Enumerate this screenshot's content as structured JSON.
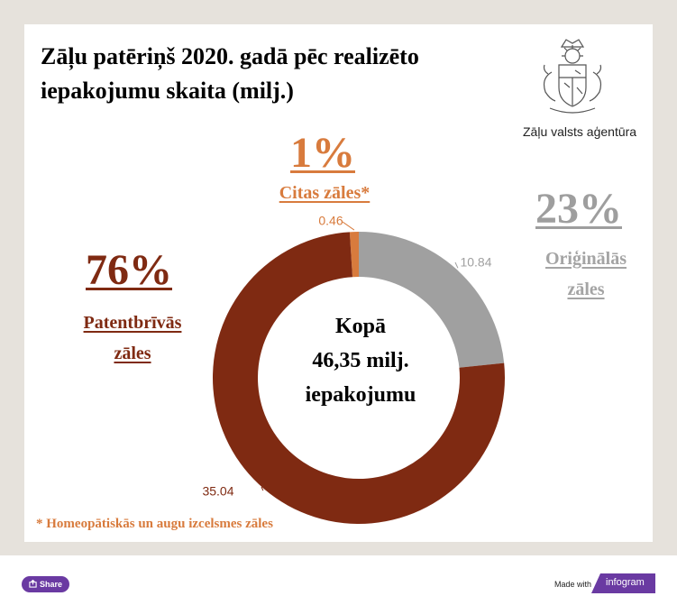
{
  "title": "Zāļu patēriņš 2020. gadā pēc realizēto iepakojumu skaita (milj.)",
  "logo": {
    "text": "Zāļu valsts aģentūra",
    "icon": "latvia-coat-of-arms-icon"
  },
  "center_label": {
    "line1": "Kopā",
    "line2": "46,35 milj.",
    "line3": "iepakojumu"
  },
  "categories": {
    "other": {
      "pct": "1%",
      "label": "Citas zāles*",
      "color": "#d87b3d"
    },
    "original": {
      "pct": "23%",
      "label_line1": "Oriģinālās",
      "label_line2": "zāles",
      "color": "#9e9e9e"
    },
    "generic": {
      "pct": "76%",
      "label_line1": "Patentbrīvās",
      "label_line2": "zāles",
      "color": "#7f2a12"
    }
  },
  "footnote": "* Homeopātiskās un augu izcelsmes zāles",
  "footer": {
    "share_label": "Share",
    "made_with": "Made with",
    "brand": "infogram",
    "brand_color": "#6a3aa2"
  },
  "chart_data": {
    "type": "pie",
    "variant": "donut",
    "title": "Zāļu patēriņš 2020. gadā pēc realizēto iepakojumu skaita (milj.)",
    "slices": [
      {
        "label": "Citas zāles*",
        "value": 0.46,
        "value_label": "0.46",
        "color": "#d87b3d"
      },
      {
        "label": "Oriģinālās zāles",
        "value": 10.84,
        "value_label": "10.84",
        "color": "#a0a0a0"
      },
      {
        "label": "Patentbrīvās zāles",
        "value": 35.04,
        "value_label": "35.04",
        "color": "#7f2a12"
      }
    ],
    "total": 46.35
  }
}
